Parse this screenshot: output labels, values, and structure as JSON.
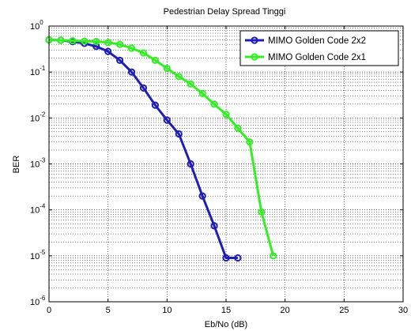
{
  "chart_data": {
    "type": "line",
    "title": "Pedestrian Delay Spread Tinggi",
    "xlabel": "Eb/No (dB)",
    "ylabel": "BER",
    "xlim": [
      0,
      30
    ],
    "ylim": [
      1e-06,
      1
    ],
    "yscale": "log",
    "grid": true,
    "legend_position": "top-right",
    "xticks": [
      0,
      5,
      10,
      15,
      20,
      25,
      30
    ],
    "yticks": [
      {
        "base": "10",
        "exp": "0"
      },
      {
        "base": "10",
        "exp": "-1"
      },
      {
        "base": "10",
        "exp": "-2"
      },
      {
        "base": "10",
        "exp": "-3"
      },
      {
        "base": "10",
        "exp": "-4"
      },
      {
        "base": "10",
        "exp": "-5"
      },
      {
        "base": "10",
        "exp": "-6"
      }
    ],
    "series": [
      {
        "name": "MIMO Golden Code 2x2",
        "color": "#1f1fb5",
        "x": [
          0,
          1,
          2,
          3,
          4,
          5,
          6,
          7,
          8,
          9,
          10,
          11,
          12,
          13,
          14,
          15,
          16
        ],
        "y": [
          0.5,
          0.49,
          0.46,
          0.42,
          0.36,
          0.28,
          0.18,
          0.1,
          0.045,
          0.019,
          0.009,
          0.0045,
          0.001,
          0.0002,
          4.5e-05,
          9e-06,
          9e-06
        ]
      },
      {
        "name": "MIMO Golden Code 2x1",
        "color": "#33ee22",
        "x": [
          0,
          1,
          2,
          3,
          4,
          5,
          6,
          7,
          8,
          9,
          10,
          11,
          12,
          13,
          14,
          15,
          16,
          17,
          18,
          19
        ],
        "y": [
          0.5,
          0.49,
          0.48,
          0.47,
          0.46,
          0.44,
          0.4,
          0.33,
          0.26,
          0.18,
          0.12,
          0.08,
          0.055,
          0.034,
          0.02,
          0.012,
          0.006,
          0.003,
          9e-05,
          1e-05
        ]
      }
    ]
  }
}
